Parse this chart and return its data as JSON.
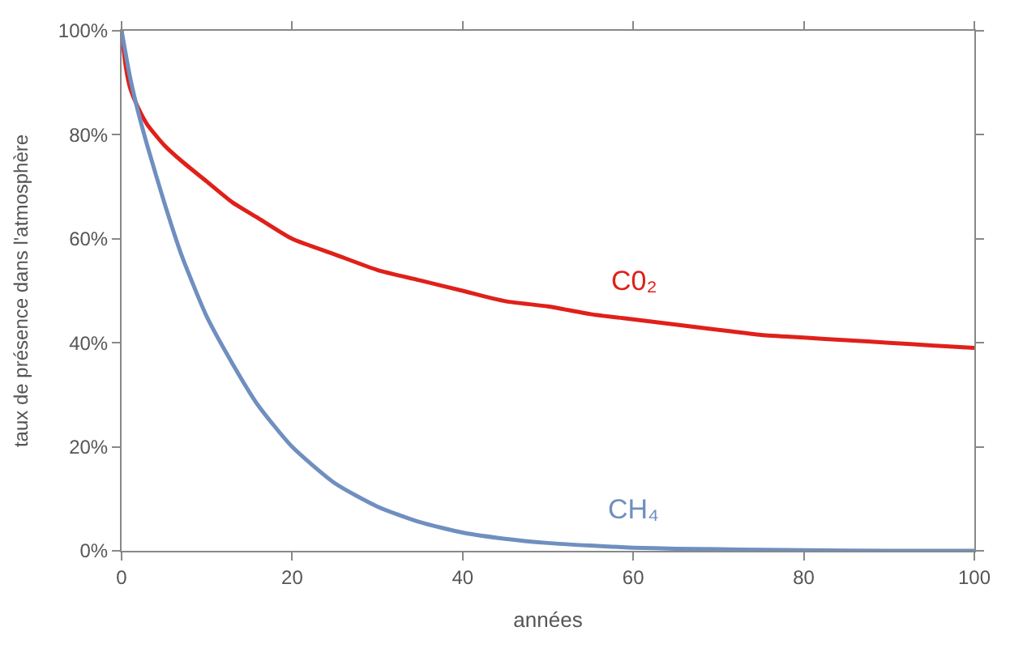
{
  "chart_data": {
    "type": "line",
    "xlabel": "années",
    "ylabel": "taux de présence dans l'atmosphère",
    "xlim": [
      0,
      100
    ],
    "xticks": [
      0,
      20,
      40,
      60,
      80,
      100
    ],
    "ylim": [
      0,
      100
    ],
    "yticks": [
      {
        "value": 0,
        "label": "0%"
      },
      {
        "value": 20,
        "label": "20%"
      },
      {
        "value": 40,
        "label": "40%"
      },
      {
        "value": 60,
        "label": "60%"
      },
      {
        "value": 80,
        "label": "80%"
      },
      {
        "value": 100,
        "label": "100%"
      }
    ],
    "legend": false,
    "marker": "none",
    "line_style": "solid",
    "series": [
      {
        "name": "C0₂",
        "color": "#e0201a",
        "x": [
          0,
          0.5,
          1,
          2,
          3,
          5,
          7,
          10,
          13,
          16,
          20,
          25,
          30,
          35,
          40,
          45,
          50,
          55,
          60,
          65,
          70,
          75,
          80,
          85,
          90,
          95,
          100
        ],
        "values": [
          100,
          93,
          89,
          85,
          82,
          78,
          75,
          71,
          67,
          64,
          60,
          57,
          54,
          52,
          50,
          48,
          47,
          45.5,
          44.5,
          43.5,
          42.5,
          41.5,
          41,
          40.5,
          40,
          39.5,
          39
        ]
      },
      {
        "name": "CH₄",
        "color": "#6f8fc0",
        "x": [
          0,
          1,
          2,
          3,
          5,
          7,
          10,
          13,
          16,
          20,
          25,
          30,
          35,
          40,
          45,
          50,
          55,
          60,
          65,
          70,
          75,
          80,
          90,
          100
        ],
        "values": [
          100,
          91,
          84,
          78,
          67,
          57,
          45,
          36,
          28,
          20,
          13,
          8.5,
          5.5,
          3.5,
          2.3,
          1.5,
          1,
          0.6,
          0.4,
          0.3,
          0.2,
          0.1,
          0,
          0
        ]
      }
    ]
  }
}
